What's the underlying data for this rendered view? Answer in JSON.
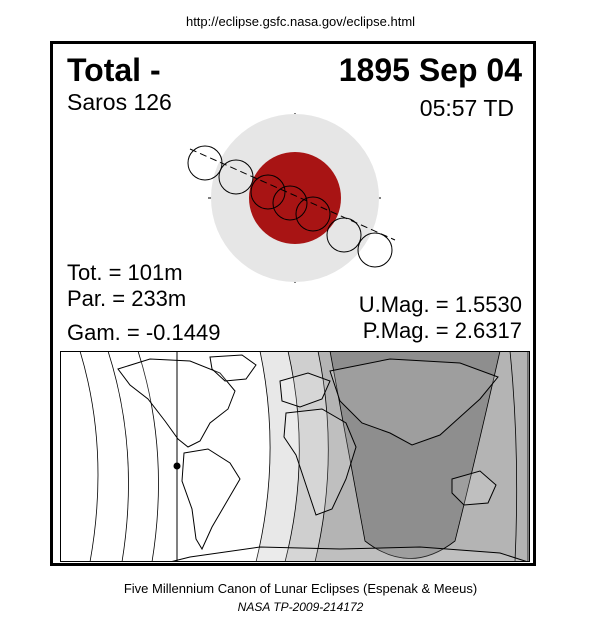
{
  "header": {
    "url": "http://eclipse.gsfc.nasa.gov/eclipse.html"
  },
  "eclipse": {
    "type": "Total  -",
    "date": "1895 Sep 04",
    "saros": "Saros 126",
    "time": "05:57 TD",
    "tot": "Tot. = 101m",
    "par": "Par. = 233m",
    "gam": "Gam. = -0.1449",
    "umag": "U.Mag. = 1.5530",
    "pmag": "P.Mag. = 2.6317"
  },
  "colors": {
    "umbra": "#a81414",
    "penumbra": "#e6e6e6",
    "map_night": "#8e8e8e",
    "map_zone_1": "#b4b4b4",
    "map_zone_2": "#cfcfcf",
    "map_zone_3": "#e8e8e8"
  },
  "footer": {
    "canon": "Five Millennium Canon of Lunar Eclipses (Espenak & Meeus)",
    "nasa": "NASA TP-2009-214172"
  }
}
